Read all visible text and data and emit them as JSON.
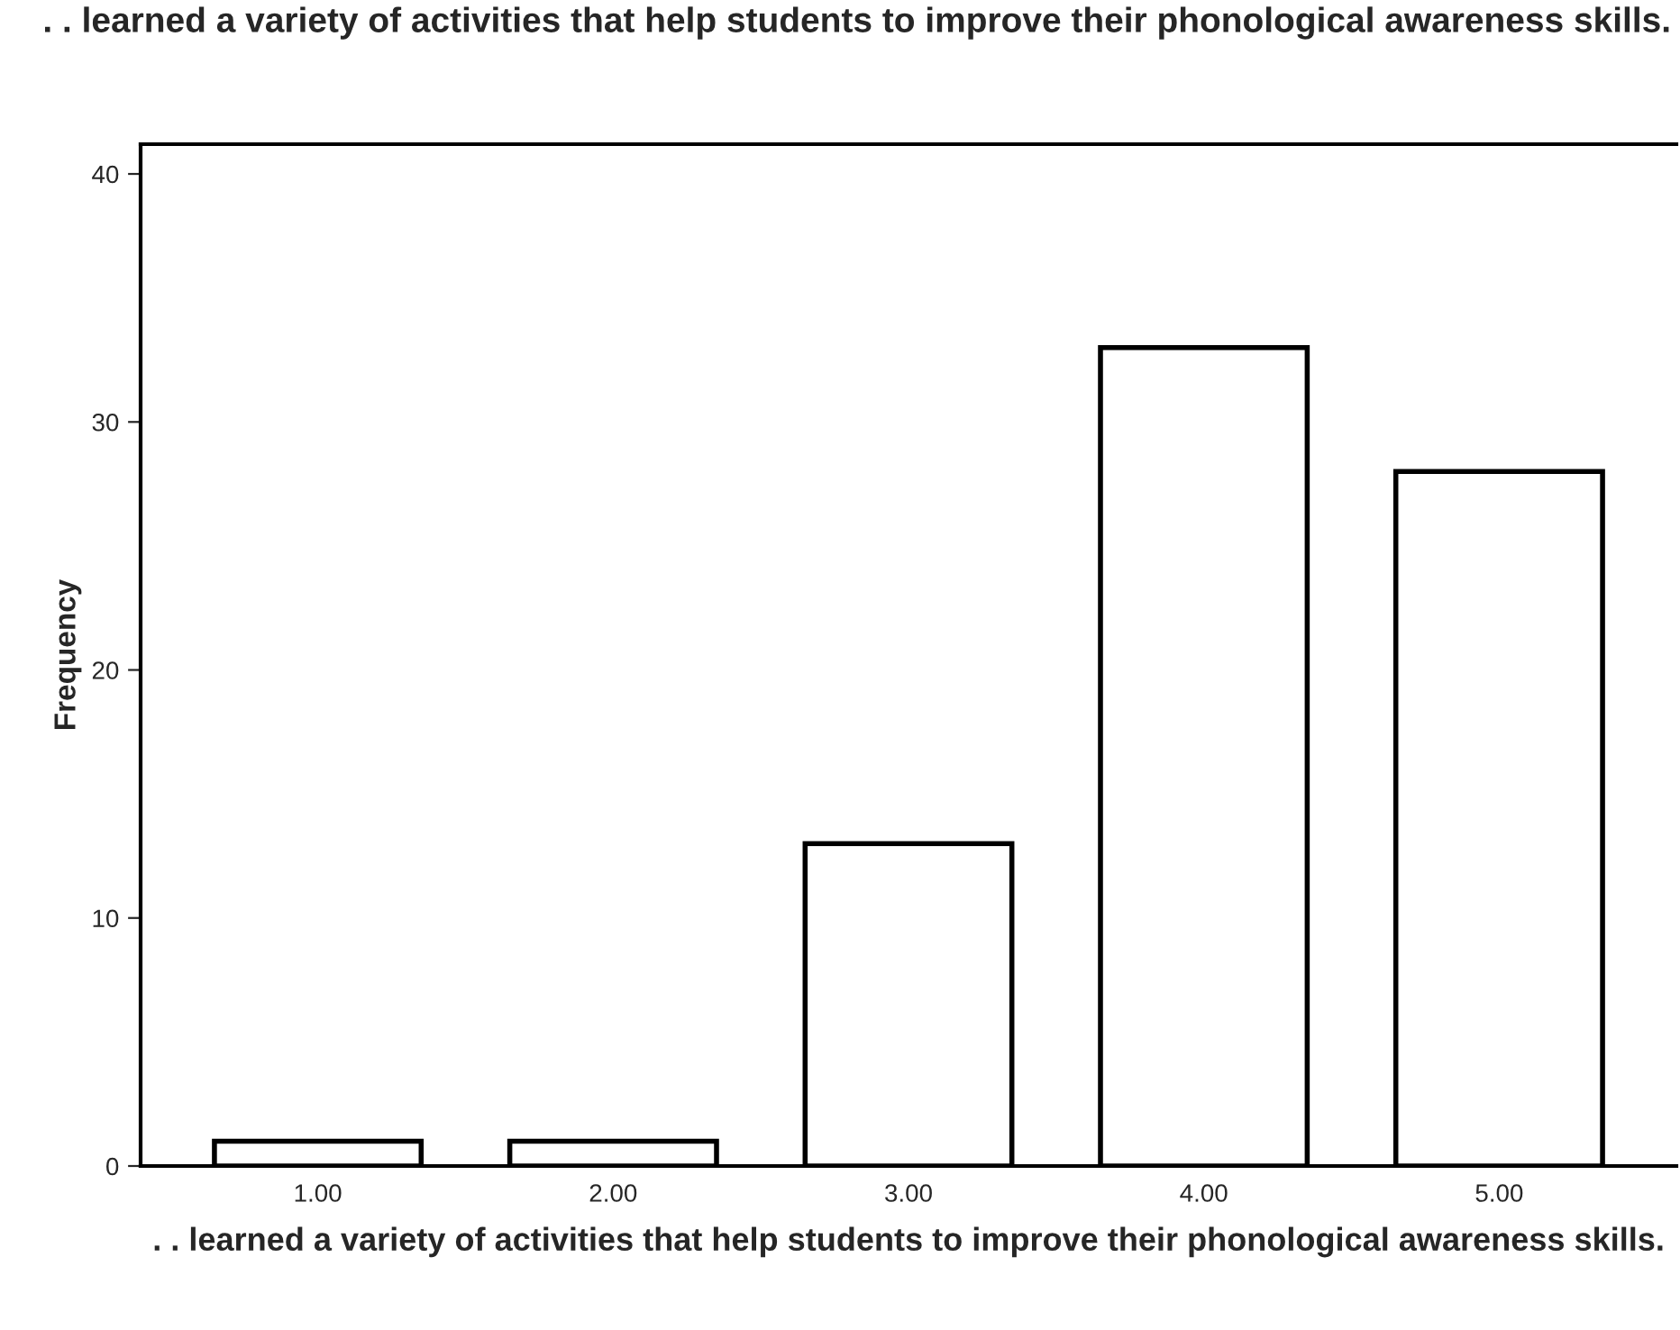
{
  "chart_data": {
    "type": "bar",
    "title": ". . learned a variety of activities that help students to improve their phonological awareness skills.",
    "xlabel": ". . learned a variety of activities that help students to improve their phonological awareness skills.",
    "ylabel": "Frequency",
    "categories": [
      "1.00",
      "2.00",
      "3.00",
      "4.00",
      "5.00"
    ],
    "values": [
      1,
      1,
      13,
      33,
      28
    ],
    "color": "#ffffff",
    "ylim": [
      0,
      41.2
    ],
    "yticks": [
      0,
      10,
      20,
      30,
      40
    ],
    "grid": false,
    "legend": false
  }
}
